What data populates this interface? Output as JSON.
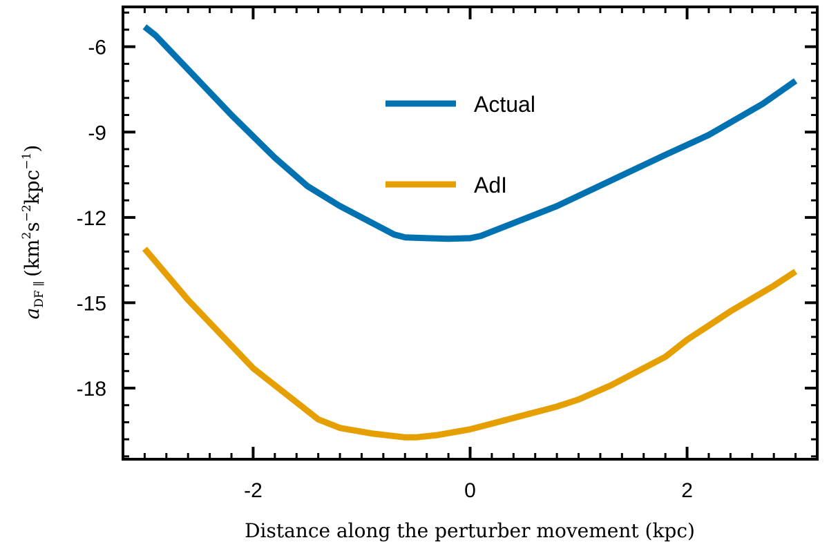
{
  "chart_data": {
    "type": "line",
    "xlabel": "Distance along the perturber movement (kpc)",
    "ylabel": {
      "symbol": "a",
      "sub": "DF ∥",
      "unit_open": "(km",
      "exp1": "2",
      "unit_mid": "s",
      "exp2": "−2",
      "unit_mid2": "kpc",
      "exp3": "−1",
      "unit_close": ")"
    },
    "xlim": [
      -3.2,
      3.2
    ],
    "ylim": [
      -20.5,
      -4.6
    ],
    "xticks": [
      -2,
      0,
      2
    ],
    "xtick_labels": [
      "-2",
      "0",
      "2"
    ],
    "yticks": [
      -6,
      -9,
      -12,
      -15,
      -18
    ],
    "ytick_labels": [
      "-6",
      "-9",
      "-12",
      "-15",
      "-18"
    ],
    "legend": "center",
    "grid": false,
    "series": [
      {
        "name": "Actual",
        "color": "#0072B2",
        "x": [
          -3.0,
          -2.9,
          -2.6,
          -2.2,
          -1.8,
          -1.5,
          -1.2,
          -0.9,
          -0.7,
          -0.6,
          -0.4,
          -0.2,
          0.0,
          0.1,
          0.4,
          0.8,
          1.3,
          1.8,
          2.2,
          2.7,
          3.0
        ],
        "y": [
          -5.3,
          -5.6,
          -6.8,
          -8.4,
          -9.9,
          -10.9,
          -11.6,
          -12.2,
          -12.6,
          -12.7,
          -12.73,
          -12.75,
          -12.73,
          -12.65,
          -12.2,
          -11.6,
          -10.7,
          -9.8,
          -9.1,
          -8.0,
          -7.2
        ]
      },
      {
        "name": "AdI",
        "color": "#E69F00",
        "x": [
          -3.0,
          -2.6,
          -2.0,
          -1.4,
          -1.2,
          -0.9,
          -0.6,
          -0.5,
          -0.3,
          0.0,
          0.2,
          0.5,
          0.8,
          1.0,
          1.3,
          1.8,
          2.0,
          2.4,
          2.8,
          3.0
        ],
        "y": [
          -13.1,
          -14.9,
          -17.3,
          -19.1,
          -19.4,
          -19.6,
          -19.73,
          -19.73,
          -19.65,
          -19.45,
          -19.25,
          -18.95,
          -18.65,
          -18.4,
          -17.9,
          -16.9,
          -16.3,
          -15.3,
          -14.4,
          -13.9
        ]
      }
    ]
  }
}
